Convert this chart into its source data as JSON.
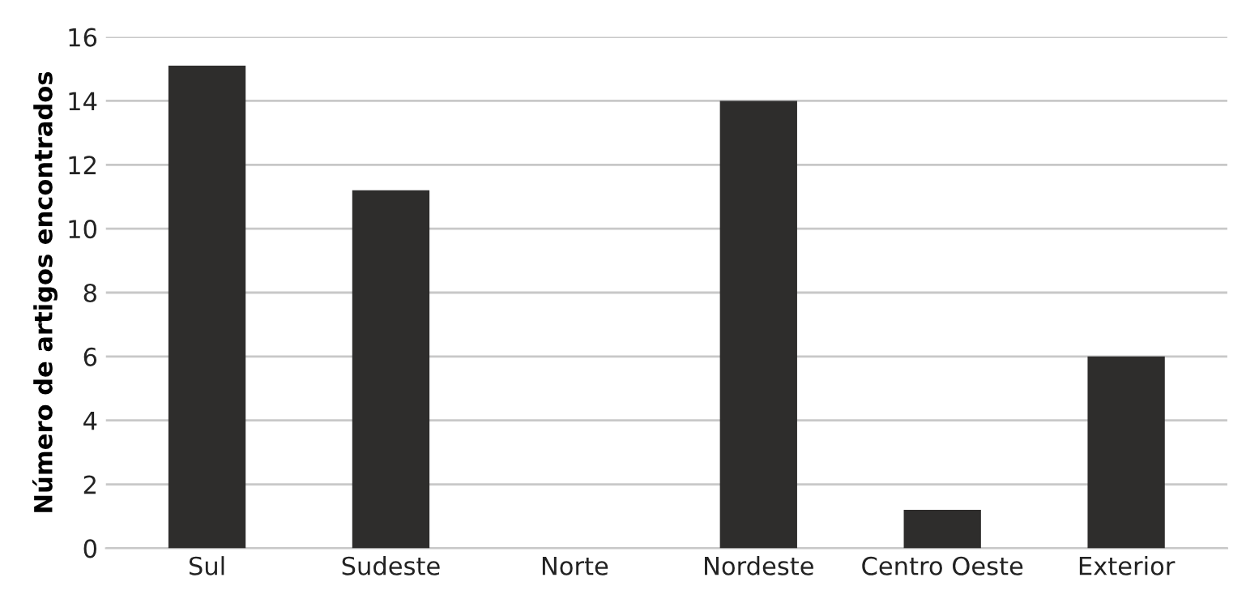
{
  "chart_data": {
    "type": "bar",
    "ylabel": "Número de artigos encontrados",
    "categories": [
      "Sul",
      "Sudeste",
      "Norte",
      "Nordeste",
      "Centro Oeste",
      "Exterior"
    ],
    "values": [
      15.1,
      11.2,
      0,
      14,
      1.2,
      6
    ],
    "color": "#2e2d2c",
    "ylim": [
      0,
      16
    ],
    "yticks": [
      0,
      2,
      4,
      6,
      8,
      10,
      12,
      14,
      16
    ],
    "grid": "y",
    "legend": false
  }
}
